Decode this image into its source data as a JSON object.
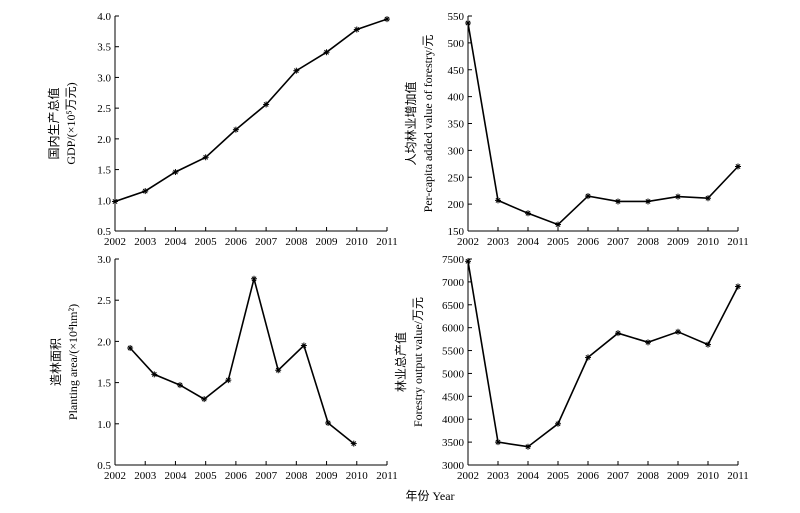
{
  "footer_xlabel": "年份 Year",
  "chart_data": [
    {
      "type": "line",
      "ylabel_cn": "国内生产总值",
      "ylabel_en": "GDP/(×10⁵万元)",
      "x": [
        2002,
        2003,
        2004,
        2005,
        2006,
        2007,
        2008,
        2009,
        2010,
        2011
      ],
      "values": [
        0.98,
        1.15,
        1.46,
        1.7,
        2.15,
        2.56,
        3.11,
        3.41,
        3.78,
        3.95
      ],
      "xticks": [
        "2002",
        "2003",
        "2004",
        "2005",
        "2006",
        "2007",
        "2008",
        "2009",
        "2010",
        "2011"
      ],
      "yticks": [
        "0.5",
        "1.0",
        "1.5",
        "2.0",
        "2.5",
        "3.0",
        "3.5",
        "4.0"
      ],
      "xlim": [
        2002,
        2011
      ],
      "ylim": [
        0.5,
        4.0
      ],
      "marker": "asterisk",
      "grid": false
    },
    {
      "type": "line",
      "ylabel_cn": "人均林业增加值",
      "ylabel_en": "Per-capita added value of forestry/元",
      "x": [
        2002,
        2003,
        2004,
        2005,
        2006,
        2007,
        2008,
        2009,
        2010,
        2011
      ],
      "values": [
        537,
        207,
        183,
        162,
        215,
        205,
        205,
        214,
        211,
        270
      ],
      "xticks": [
        "2002",
        "2003",
        "2004",
        "2005",
        "2006",
        "2007",
        "2008",
        "2009",
        "2010",
        "2011"
      ],
      "yticks": [
        "150",
        "200",
        "250",
        "300",
        "350",
        "400",
        "450",
        "500",
        "550"
      ],
      "xlim": [
        2002,
        2011
      ],
      "ylim": [
        150,
        550
      ],
      "marker": "asterisk",
      "grid": false
    },
    {
      "type": "line",
      "ylabel_cn": "造林面积",
      "ylabel_en": "Planting area/(×10⁴hm²)",
      "x": [
        2002.5,
        2003.3,
        2004.15,
        2004.95,
        2005.75,
        2006.6,
        2007.4,
        2008.25,
        2009.05,
        2009.9
      ],
      "values": [
        1.92,
        1.6,
        1.47,
        1.3,
        1.53,
        2.76,
        1.65,
        1.95,
        1.01,
        0.76
      ],
      "xticks": [
        "2002",
        "2003",
        "2004",
        "2005",
        "2006",
        "2007",
        "2008",
        "2009",
        "2010",
        "2011"
      ],
      "yticks": [
        "0.5",
        "1.0",
        "1.5",
        "2.0",
        "2.5",
        "3.0"
      ],
      "xlim": [
        2002,
        2011
      ],
      "ylim": [
        0.5,
        3.0
      ],
      "marker": "asterisk",
      "grid": false
    },
    {
      "type": "line",
      "ylabel_cn": "林业总产值",
      "ylabel_en": "Forestry output value/万元",
      "x": [
        2002,
        2003,
        2004,
        2005,
        2006,
        2007,
        2008,
        2009,
        2010,
        2011
      ],
      "values": [
        7450,
        3500,
        3400,
        3900,
        5350,
        5880,
        5680,
        5910,
        5630,
        6900
      ],
      "xticks": [
        "2002",
        "2003",
        "2004",
        "2005",
        "2006",
        "2007",
        "2008",
        "2009",
        "2010",
        "2011"
      ],
      "yticks": [
        "3000",
        "3500",
        "4000",
        "4500",
        "5000",
        "5500",
        "6000",
        "6500",
        "7000",
        "7500"
      ],
      "xlim": [
        2002,
        2011
      ],
      "ylim": [
        3000,
        7500
      ],
      "marker": "asterisk",
      "grid": false
    }
  ]
}
